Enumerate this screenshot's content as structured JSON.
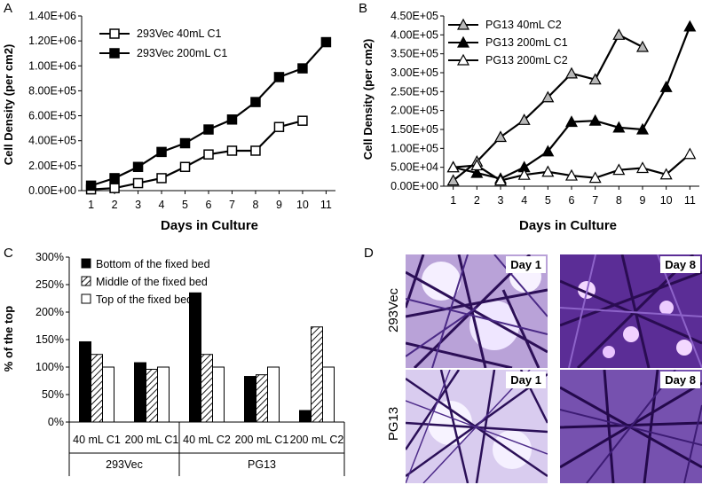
{
  "panels": {
    "a": "A",
    "b": "B",
    "c": "C",
    "d": "D"
  },
  "chart_data": [
    {
      "type": "line",
      "panel": "A",
      "xlabel": "Days in Culture",
      "ylabel": "Cell Density (per cm2)",
      "x_ticks": [
        1,
        2,
        3,
        4,
        5,
        6,
        7,
        8,
        9,
        10,
        11
      ],
      "y_ticks": [
        "0.00E+00",
        "2.00E+05",
        "4.00E+05",
        "6.00E+05",
        "8.00E+05",
        "1.00E+06",
        "1.20E+06",
        "1.40E+06"
      ],
      "ylim": [
        0,
        1400000
      ],
      "xlim": [
        0.6,
        11.4
      ],
      "legend": "top-left",
      "series": [
        {
          "name": "293Vec 40mL C1",
          "marker": "square-open",
          "x": [
            1,
            2,
            3,
            4,
            5,
            6,
            7,
            8,
            9,
            10
          ],
          "y": [
            10000,
            20000,
            60000,
            100000,
            190000,
            290000,
            320000,
            320000,
            510000,
            560000
          ]
        },
        {
          "name": "293Vec 200mL C1",
          "marker": "square-filled",
          "x": [
            1,
            2,
            3,
            4,
            5,
            6,
            7,
            8,
            9,
            10,
            11
          ],
          "y": [
            40000,
            100000,
            190000,
            310000,
            380000,
            490000,
            570000,
            710000,
            910000,
            980000,
            1190000
          ]
        }
      ]
    },
    {
      "type": "line",
      "panel": "B",
      "xlabel": "Days in Culture",
      "ylabel": "Cell Density (per cm2)",
      "x_ticks": [
        1,
        2,
        3,
        4,
        5,
        6,
        7,
        8,
        9,
        10,
        11
      ],
      "y_ticks": [
        "0.00E+00",
        "5.00E+04",
        "1.00E+05",
        "1.50E+05",
        "2.00E+05",
        "2.50E+05",
        "3.00E+05",
        "3.50E+05",
        "4.00E+05",
        "4.50E+05"
      ],
      "ylim": [
        0,
        450000
      ],
      "xlim": [
        0.6,
        11.4
      ],
      "legend": "top-left",
      "series": [
        {
          "name": "PG13 40mL C2",
          "marker": "triangle-gray",
          "x": [
            1,
            2,
            3,
            4,
            5,
            6,
            7,
            8,
            9
          ],
          "y": [
            15000,
            65000,
            130000,
            175000,
            235000,
            298000,
            282000,
            400000,
            368000
          ]
        },
        {
          "name": "PG13 200mL C1",
          "marker": "triangle-filled",
          "x": [
            1,
            2,
            3,
            4,
            5,
            6,
            7,
            8,
            9,
            10,
            11
          ],
          "y": [
            50000,
            35000,
            20000,
            50000,
            92000,
            170000,
            173000,
            155000,
            150000,
            262000,
            422000
          ]
        },
        {
          "name": "PG13 200mL C2",
          "marker": "triangle-open",
          "x": [
            1,
            2,
            3,
            4,
            5,
            6,
            7,
            8,
            9,
            10,
            11
          ],
          "y": [
            50000,
            55000,
            15000,
            30000,
            38000,
            28000,
            22000,
            43000,
            48000,
            31000,
            85000
          ]
        }
      ]
    },
    {
      "type": "bar",
      "panel": "C",
      "ylabel": "% of the top",
      "y_ticks": [
        "0%",
        "50%",
        "100%",
        "150%",
        "200%",
        "250%",
        "300%"
      ],
      "ylim": [
        0,
        300
      ],
      "legend": "top-left",
      "categories": [
        "40 mL C1",
        "200 mL C1",
        "40 mL C2",
        "200 mL C1",
        "200 mL C2"
      ],
      "groups": [
        {
          "label": "293Vec",
          "span": [
            0,
            1
          ]
        },
        {
          "label": "PG13",
          "span": [
            2,
            4
          ]
        }
      ],
      "series": [
        {
          "name": "Bottom of the fixed bed",
          "fill": "solid",
          "values": [
            146,
            108,
            235,
            83,
            21
          ]
        },
        {
          "name": "Middle of the fixed bed",
          "fill": "hatched",
          "values": [
            123,
            96,
            123,
            86,
            173
          ]
        },
        {
          "name": "Top of the fixed bed",
          "fill": "open",
          "values": [
            100,
            100,
            100,
            100,
            100
          ]
        }
      ]
    }
  ],
  "micrographs": {
    "row_labels": [
      "293Vec",
      "PG13"
    ],
    "tiles": [
      {
        "row": 0,
        "col": 0,
        "label": "Day 1"
      },
      {
        "row": 0,
        "col": 1,
        "label": "Day 8"
      },
      {
        "row": 1,
        "col": 0,
        "label": "Day 1"
      },
      {
        "row": 1,
        "col": 1,
        "label": "Day 8"
      }
    ]
  }
}
